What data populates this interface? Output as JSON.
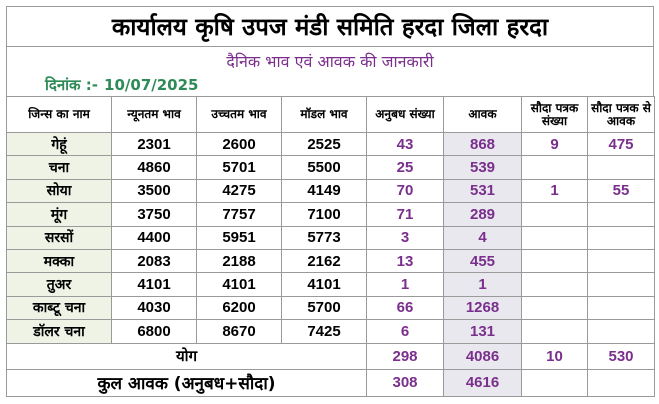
{
  "header": {
    "title": "कार्यालय कृषि उपज मंडी समिति हरदा जिला हरदा",
    "subtitle": "दैनिक भाव एवं आवक की जानकारी",
    "date_label": "दिनांक :-",
    "date_value": "10/07/2025"
  },
  "table": {
    "columns": [
      "जिन्स का नाम",
      "न्यूनतम भाव",
      "उच्चतम भाव",
      "मॉडल भाव",
      "अनुबध संख्या",
      "आवक",
      "सौदा पत्रक संख्या",
      "सौदा पत्रक से आवक"
    ],
    "rows": [
      [
        "गेहूं",
        "2301",
        "2600",
        "2525",
        "43",
        "868",
        "9",
        "475"
      ],
      [
        "चना",
        "4860",
        "5701",
        "5500",
        "25",
        "539",
        "",
        ""
      ],
      [
        "सोया",
        "3500",
        "4275",
        "4149",
        "70",
        "531",
        "1",
        "55"
      ],
      [
        "मूंग",
        "3750",
        "7757",
        "7100",
        "71",
        "289",
        "",
        ""
      ],
      [
        "सरसों",
        "4400",
        "5951",
        "5773",
        "3",
        "4",
        "",
        ""
      ],
      [
        "मक्का",
        "2083",
        "2188",
        "2162",
        "13",
        "455",
        "",
        ""
      ],
      [
        "तुअर",
        "4101",
        "4101",
        "4101",
        "1",
        "1",
        "",
        ""
      ],
      [
        "काब्टू चना",
        "4030",
        "6200",
        "5700",
        "66",
        "1268",
        "",
        ""
      ],
      [
        "डॉलर चना",
        "6800",
        "8670",
        "7425",
        "6",
        "131",
        "",
        ""
      ]
    ],
    "total": {
      "label": "योग",
      "anubandh": "298",
      "aavak": "4086",
      "sauda_sankhya": "10",
      "sauda_aavak": "530"
    },
    "grand_total": {
      "label": "कुल आवक (अनुबध+सौदा)",
      "anubandh": "308",
      "aavak": "4616"
    }
  }
}
